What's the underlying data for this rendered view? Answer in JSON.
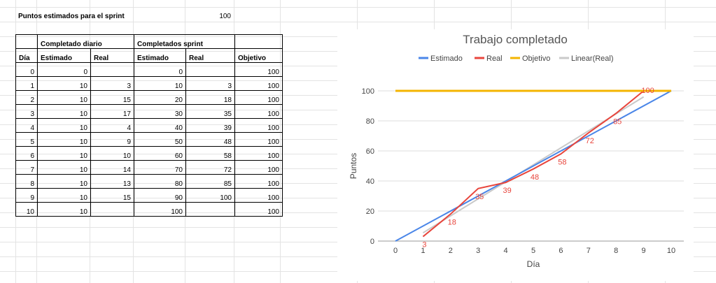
{
  "sheet": {
    "title_label": "Puntos estimados para el sprint",
    "title_value": "100"
  },
  "table": {
    "group_headers": [
      "Completado diario",
      "Completados sprint"
    ],
    "columns": [
      "Día",
      "Estimado",
      "Real",
      "Estimado",
      "Real",
      "Objetivo"
    ],
    "rows": [
      [
        "0",
        "0",
        "",
        "0",
        "",
        "100"
      ],
      [
        "1",
        "10",
        "3",
        "10",
        "3",
        "100"
      ],
      [
        "2",
        "10",
        "15",
        "20",
        "18",
        "100"
      ],
      [
        "3",
        "10",
        "17",
        "30",
        "35",
        "100"
      ],
      [
        "4",
        "10",
        "4",
        "40",
        "39",
        "100"
      ],
      [
        "5",
        "10",
        "9",
        "50",
        "48",
        "100"
      ],
      [
        "6",
        "10",
        "10",
        "60",
        "58",
        "100"
      ],
      [
        "7",
        "10",
        "14",
        "70",
        "72",
        "100"
      ],
      [
        "8",
        "10",
        "13",
        "80",
        "85",
        "100"
      ],
      [
        "9",
        "10",
        "15",
        "90",
        "100",
        "100"
      ],
      [
        "10",
        "10",
        "",
        "100",
        "",
        "100"
      ]
    ]
  },
  "chart_data": {
    "type": "line",
    "title": "Trabajo completado",
    "xlabel": "Día",
    "ylabel": "Puntos",
    "xlim": [
      0,
      10
    ],
    "ylim": [
      0,
      100
    ],
    "x_ticks": [
      "0",
      "1",
      "2",
      "3",
      "4",
      "5",
      "6",
      "7",
      "8",
      "9",
      "10"
    ],
    "y_ticks": [
      "0",
      "20",
      "40",
      "60",
      "80",
      "100"
    ],
    "grid": true,
    "legend_position": "top",
    "series": [
      {
        "name": "Estimado",
        "color": "#4a86e8",
        "x": [
          0,
          10
        ],
        "y": [
          0,
          100
        ]
      },
      {
        "name": "Real",
        "color": "#e8453c",
        "x": [
          1,
          2,
          3,
          4,
          5,
          6,
          7,
          8,
          9
        ],
        "y": [
          3,
          18,
          35,
          39,
          48,
          58,
          72,
          85,
          100
        ],
        "labels": [
          "3",
          "18",
          "35",
          "39",
          "48",
          "58",
          "72",
          "85",
          "100"
        ]
      },
      {
        "name": "Objetivo",
        "color": "#f4b400",
        "x": [
          0,
          10
        ],
        "y": [
          100,
          100
        ]
      },
      {
        "name": "Linear(Real)",
        "color": "#c9c9c9",
        "x": [
          1,
          9
        ],
        "y": [
          5.5,
          96
        ]
      }
    ]
  }
}
